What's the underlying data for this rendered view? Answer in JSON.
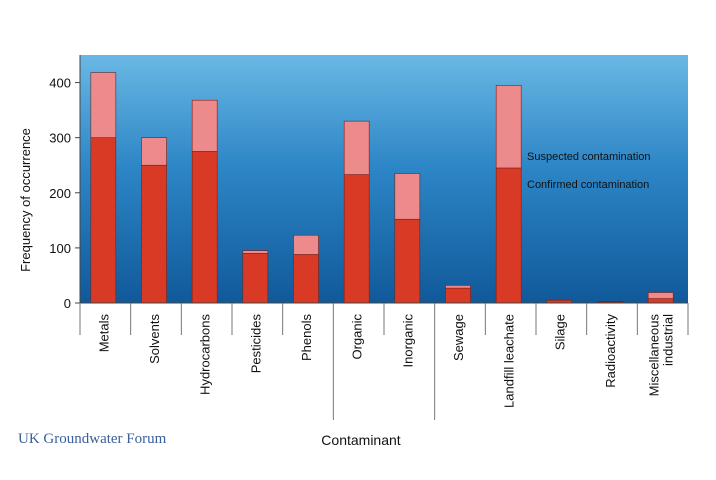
{
  "chart_data": {
    "type": "bar",
    "stacked": true,
    "categories": [
      "Metals",
      "Solvents",
      "Hydrocarbons",
      "Pesticides",
      "Phenols",
      "Organic",
      "Inorganic",
      "Sewage",
      "Landfill  leachate",
      "Silage",
      "Radioactivity",
      "Miscellaneous industrial"
    ],
    "category_lines": [
      [
        "Metals"
      ],
      [
        "Solvents"
      ],
      [
        "Hydrocarbons"
      ],
      [
        "Pesticides"
      ],
      [
        "Phenols"
      ],
      [
        "Organic"
      ],
      [
        "Inorganic"
      ],
      [
        "Sewage"
      ],
      [
        "Landfill  leachate"
      ],
      [
        "Silage"
      ],
      [
        "Radioactivity"
      ],
      [
        "Miscellaneous",
        "industrial"
      ]
    ],
    "series": [
      {
        "name": "Confirmed contamination",
        "values": [
          300,
          250,
          275,
          90,
          88,
          233,
          152,
          27,
          245,
          5,
          2,
          8
        ],
        "color": "#d93a25"
      },
      {
        "name": "Suspected contamination",
        "values": [
          118,
          50,
          93,
          5,
          35,
          97,
          83,
          5,
          150,
          0,
          1,
          11
        ],
        "color": "#ec8a8c"
      }
    ],
    "xlabel": "Contaminant",
    "ylabel": "Frequency of occurrence",
    "ylim": [
      0,
      450
    ],
    "yticks": [
      0,
      100,
      200,
      300,
      400
    ],
    "legend_placement": "inside, right of Landfill leachate bar",
    "group_separators_after": [
      "Phenols",
      "Inorganic"
    ],
    "background": {
      "top": "#6ab8e4",
      "bottom": "#10599a"
    }
  },
  "footer": {
    "text": "UK Groundwater Forum"
  }
}
